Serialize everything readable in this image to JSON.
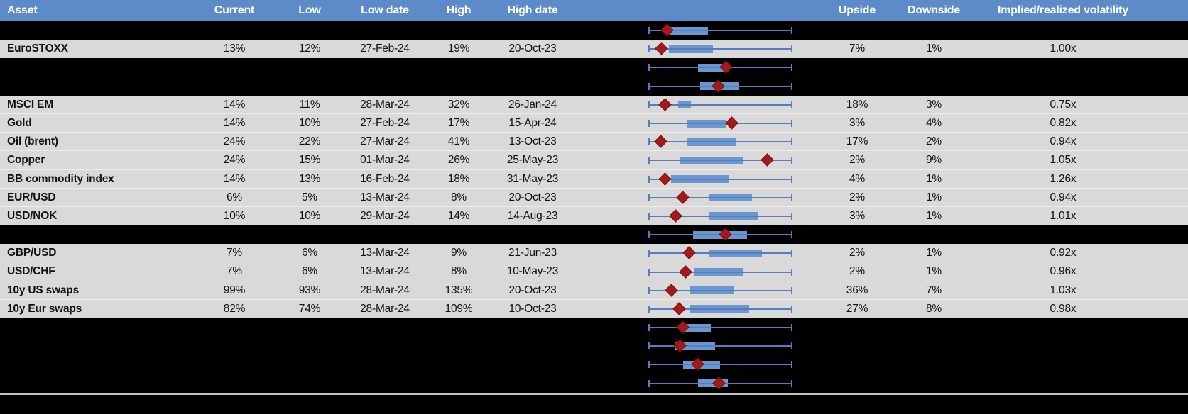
{
  "table": {
    "columns": [
      {
        "key": "asset",
        "label": "Asset"
      },
      {
        "key": "current",
        "label": "Current"
      },
      {
        "key": "low",
        "label": "Low"
      },
      {
        "key": "low_date",
        "label": "Low date"
      },
      {
        "key": "high",
        "label": "High"
      },
      {
        "key": "high_date",
        "label": "High date"
      },
      {
        "key": "chart",
        "label": ""
      },
      {
        "key": "upside",
        "label": "Upside"
      },
      {
        "key": "downside",
        "label": "Downside"
      },
      {
        "key": "iv_rv",
        "label": "Implied/realized volatility"
      }
    ],
    "rows": [
      {
        "type": "spacer",
        "plot": {
          "box_start": 0.148,
          "box_end": 0.414,
          "marker": 0.133
        }
      },
      {
        "type": "data",
        "asset": "EuroSTOXX",
        "current": "13%",
        "low": "12%",
        "low_date": "27-Feb-24",
        "high": "19%",
        "high_date": "20-Oct-23",
        "upside": "7%",
        "downside": "1%",
        "iv_rv": "1.00x",
        "plot": {
          "box_start": 0.143,
          "box_end": 0.448,
          "marker": 0.094
        }
      },
      {
        "type": "spacer",
        "plot": {
          "box_start": 0.345,
          "box_end": 0.561,
          "marker": 0.542
        }
      },
      {
        "type": "spacer",
        "plot": {
          "box_start": 0.36,
          "box_end": 0.626,
          "marker": 0.488
        }
      },
      {
        "type": "data",
        "asset": "MSCI EM",
        "current": "14%",
        "low": "11%",
        "low_date": "28-Mar-24",
        "high": "32%",
        "high_date": "26-Jan-24",
        "upside": "18%",
        "downside": "3%",
        "iv_rv": "0.75x",
        "plot": {
          "box_start": 0.207,
          "box_end": 0.296,
          "marker": 0.118
        }
      },
      {
        "type": "data",
        "asset": "Gold",
        "current": "14%",
        "low": "10%",
        "low_date": "27-Feb-24",
        "high": "17%",
        "high_date": "15-Apr-24",
        "upside": "3%",
        "downside": "4%",
        "iv_rv": "0.82x",
        "plot": {
          "box_start": 0.266,
          "box_end": 0.542,
          "marker": 0.581
        }
      },
      {
        "type": "data",
        "asset": "Oil (brent)",
        "current": "24%",
        "low": "22%",
        "low_date": "27-Mar-24",
        "high": "41%",
        "high_date": "13-Oct-23",
        "upside": "17%",
        "downside": "2%",
        "iv_rv": "0.94x",
        "plot": {
          "box_start": 0.271,
          "box_end": 0.606,
          "marker": 0.089
        }
      },
      {
        "type": "data",
        "asset": "Copper",
        "current": "24%",
        "low": "15%",
        "low_date": "01-Mar-24",
        "high": "26%",
        "high_date": "25-May-23",
        "upside": "2%",
        "downside": "9%",
        "iv_rv": "1.05x",
        "plot": {
          "box_start": 0.222,
          "box_end": 0.66,
          "marker": 0.828
        }
      },
      {
        "type": "data",
        "asset": "BB commodity index",
        "current": "14%",
        "low": "13%",
        "low_date": "16-Feb-24",
        "high": "18%",
        "high_date": "31-May-23",
        "upside": "4%",
        "downside": "1%",
        "iv_rv": "1.26x",
        "plot": {
          "box_start": 0.158,
          "box_end": 0.561,
          "marker": 0.118
        }
      },
      {
        "type": "data",
        "asset": "EUR/USD",
        "current": "6%",
        "low": "5%",
        "low_date": "13-Mar-24",
        "high": "8%",
        "high_date": "20-Oct-23",
        "upside": "2%",
        "downside": "1%",
        "iv_rv": "0.94x",
        "plot": {
          "box_start": 0.419,
          "box_end": 0.719,
          "marker": 0.241
        }
      },
      {
        "type": "data",
        "asset": "USD/NOK",
        "current": "10%",
        "low": "10%",
        "low_date": "29-Mar-24",
        "high": "14%",
        "high_date": "14-Aug-23",
        "upside": "3%",
        "downside": "1%",
        "iv_rv": "1.01x",
        "plot": {
          "box_start": 0.419,
          "box_end": 0.763,
          "marker": 0.192
        }
      },
      {
        "type": "spacer",
        "plot": {
          "box_start": 0.31,
          "box_end": 0.685,
          "marker": 0.537
        }
      },
      {
        "type": "data",
        "asset": "GBP/USD",
        "current": "7%",
        "low": "6%",
        "low_date": "13-Mar-24",
        "high": "9%",
        "high_date": "21-Jun-23",
        "upside": "2%",
        "downside": "1%",
        "iv_rv": "0.92x",
        "plot": {
          "box_start": 0.419,
          "box_end": 0.788,
          "marker": 0.286
        }
      },
      {
        "type": "data",
        "asset": "USD/CHF",
        "current": "7%",
        "low": "6%",
        "low_date": "13-Mar-24",
        "high": "8%",
        "high_date": "10-May-23",
        "upside": "2%",
        "downside": "1%",
        "iv_rv": "0.96x",
        "plot": {
          "box_start": 0.315,
          "box_end": 0.66,
          "marker": 0.261
        }
      },
      {
        "type": "data",
        "asset": "10y US swaps",
        "current": "99%",
        "low": "93%",
        "low_date": "28-Mar-24",
        "high": "135%",
        "high_date": "20-Oct-23",
        "upside": "36%",
        "downside": "7%",
        "iv_rv": "1.03x",
        "plot": {
          "box_start": 0.291,
          "box_end": 0.591,
          "marker": 0.163
        }
      },
      {
        "type": "data",
        "asset": "10y Eur swaps",
        "current": "82%",
        "low": "74%",
        "low_date": "28-Mar-24",
        "high": "109%",
        "high_date": "10-Oct-23",
        "upside": "27%",
        "downside": "8%",
        "iv_rv": "0.98x",
        "plot": {
          "box_start": 0.291,
          "box_end": 0.7,
          "marker": 0.217
        }
      },
      {
        "type": "spacer",
        "plot": {
          "box_start": 0.256,
          "box_end": 0.433,
          "marker": 0.241
        }
      },
      {
        "type": "spacer",
        "plot": {
          "box_start": 0.182,
          "box_end": 0.463,
          "marker": 0.222
        }
      },
      {
        "type": "spacer",
        "plot": {
          "box_start": 0.241,
          "box_end": 0.498,
          "marker": 0.345
        }
      },
      {
        "type": "spacer",
        "plot": {
          "box_start": 0.345,
          "box_end": 0.552,
          "marker": 0.493
        }
      }
    ]
  },
  "colors": {
    "header_bg": "#5D8AC8",
    "header_text": "#FFFFFF",
    "row_bg": "#D9D9D9",
    "spacer_bg": "#000000",
    "text": "#111111",
    "box_fill": "#6C96CE",
    "whisker": "#527FC4",
    "marker": "#A41A1A",
    "marker_border": "#7C0E0E",
    "divider": "#BFBFBF"
  }
}
